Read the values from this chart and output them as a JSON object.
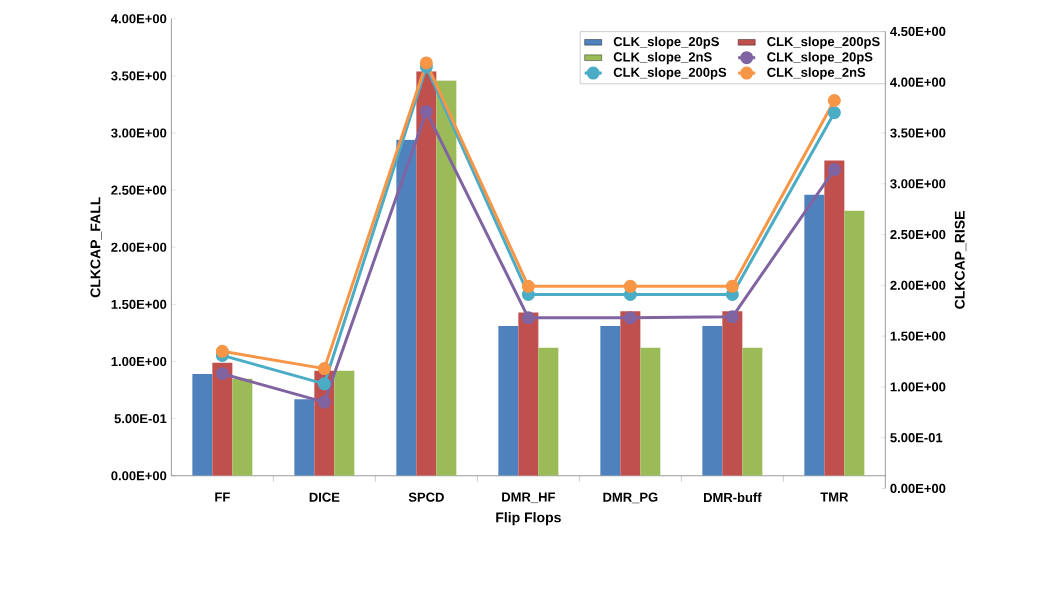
{
  "chart_data": {
    "type": "bar",
    "xlabel": "Flip Flops",
    "ylabel": "CLKCAP_FALL",
    "y2label": "CLKCAP_RISE",
    "categories": [
      "FF",
      "DICE",
      "SPCD",
      "DMR_HF",
      "DMR_PG",
      "DMR-buff",
      "TMR"
    ],
    "series": [
      {
        "name": "CLK_slope_20pS",
        "color": "#4f81bd",
        "values": [
          0.89,
          0.67,
          2.94,
          1.31,
          1.31,
          1.31,
          2.46
        ]
      },
      {
        "name": "CLK_slope_200pS",
        "color": "#c0504d",
        "values": [
          0.99,
          0.92,
          3.54,
          1.43,
          1.44,
          1.44,
          2.76
        ]
      },
      {
        "name": "CLK_slope_2nS",
        "color": "#9bbb59",
        "values": [
          0.85,
          0.92,
          3.46,
          1.12,
          1.12,
          1.12,
          2.32
        ]
      },
      {
        "name": "CLK_slope_20pS",
        "color": "#8064a2",
        "type": "line",
        "axis": "y2",
        "marker": "circle",
        "values": [
          1.13,
          0.85,
          3.71,
          1.68,
          1.68,
          1.69,
          3.14
        ]
      },
      {
        "name": "CLK_slope_200pS",
        "color": "#4bacc6",
        "type": "line",
        "axis": "y2",
        "marker": "circle",
        "values": [
          1.31,
          1.03,
          4.15,
          1.91,
          1.91,
          1.91,
          3.7
        ]
      },
      {
        "name": "CLK_slope_2nS",
        "color": "#f79646",
        "type": "line",
        "axis": "y2",
        "marker": "circle",
        "values": [
          1.35,
          1.18,
          4.19,
          1.99,
          1.99,
          1.99,
          3.82
        ]
      }
    ],
    "ylim": [
      0,
      4
    ],
    "yticks": [
      {
        "value": 0,
        "label": "0.00E+00"
      },
      {
        "value": 0.5,
        "label": "5.00E-01"
      },
      {
        "value": 1,
        "label": "1.00E+00"
      },
      {
        "value": 1.5,
        "label": "1.50E+00"
      },
      {
        "value": 2,
        "label": "2.00E+00"
      },
      {
        "value": 2.5,
        "label": "2.50E+00"
      },
      {
        "value": 3,
        "label": "3.00E+00"
      },
      {
        "value": 3.5,
        "label": "3.50E+00"
      },
      {
        "value": 4,
        "label": "4.00E+00"
      }
    ],
    "y2lim": [
      0,
      4.5
    ],
    "y2ticks": [
      {
        "value": 0,
        "label": "0.00E+00"
      },
      {
        "value": 0.5,
        "label": "5.00E-01"
      },
      {
        "value": 1,
        "label": "1.00E+00"
      },
      {
        "value": 1.5,
        "label": "1.50E+00"
      },
      {
        "value": 2,
        "label": "2.00E+00"
      },
      {
        "value": 2.5,
        "label": "2.50E+00"
      },
      {
        "value": 3,
        "label": "3.00E+00"
      },
      {
        "value": 3.5,
        "label": "3.50E+00"
      },
      {
        "value": 4,
        "label": "4.00E+00"
      },
      {
        "value": 4.5,
        "label": "4.50E+00"
      }
    ],
    "legend": "top right",
    "grid": false
  }
}
